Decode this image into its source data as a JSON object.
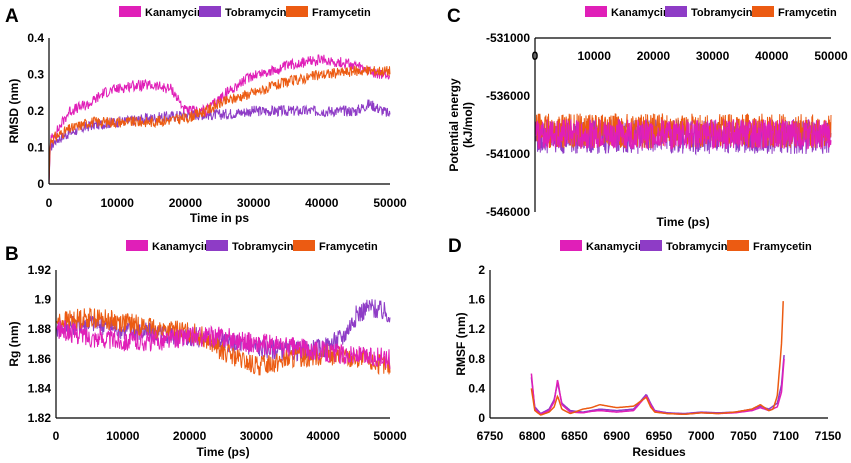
{
  "colors": {
    "Kanamycin": "#e01fb8",
    "Tobramycin": "#8e3cc6",
    "Framycetin": "#ec5b12"
  },
  "chart_data": [
    {
      "panel": "A",
      "type": "line",
      "xlabel": "Time in ps",
      "ylabel": "RMSD (nm)",
      "xlim": [
        0,
        50000
      ],
      "ylim": [
        0,
        0.4
      ],
      "xticks": [
        "0",
        "10000",
        "20000",
        "30000",
        "40000",
        "50000"
      ],
      "yticks": [
        "0",
        "0.1",
        "0.2",
        "0.3",
        "0.4"
      ],
      "legend": [
        "Kanamycin",
        "Tobramycin",
        "Framycetin"
      ],
      "series": [
        {
          "name": "Tobramycin",
          "noise": 0.015,
          "x": [
            0,
            200,
            1000,
            3000,
            6000,
            10000,
            15000,
            20000,
            25000,
            30000,
            35000,
            40000,
            45000,
            47000,
            50000
          ],
          "y": [
            0,
            0.1,
            0.12,
            0.14,
            0.16,
            0.17,
            0.18,
            0.19,
            0.19,
            0.2,
            0.2,
            0.2,
            0.2,
            0.22,
            0.19
          ]
        },
        {
          "name": "Kanamycin",
          "noise": 0.015,
          "x": [
            0,
            200,
            1000,
            3000,
            6000,
            8000,
            12000,
            15000,
            18000,
            20000,
            23000,
            26000,
            30000,
            33000,
            36000,
            40000,
            44000,
            48000,
            50000
          ],
          "y": [
            0,
            0.12,
            0.14,
            0.2,
            0.22,
            0.25,
            0.27,
            0.27,
            0.26,
            0.2,
            0.2,
            0.25,
            0.3,
            0.31,
            0.33,
            0.34,
            0.33,
            0.3,
            0.3
          ]
        },
        {
          "name": "Framycetin",
          "noise": 0.015,
          "x": [
            0,
            200,
            1000,
            3000,
            6000,
            10000,
            15000,
            20000,
            23000,
            25000,
            28000,
            30000,
            35000,
            40000,
            45000,
            50000
          ],
          "y": [
            0,
            0.12,
            0.13,
            0.15,
            0.17,
            0.17,
            0.17,
            0.18,
            0.2,
            0.22,
            0.24,
            0.25,
            0.28,
            0.3,
            0.31,
            0.31
          ]
        }
      ]
    },
    {
      "panel": "B",
      "type": "line",
      "xlabel": "Time (ps)",
      "ylabel": "Rg (nm)",
      "xlim": [
        0,
        50000
      ],
      "ylim": [
        1.82,
        1.92
      ],
      "xticks": [
        "0",
        "10000",
        "20000",
        "30000",
        "40000",
        "50000"
      ],
      "yticks": [
        "1.82",
        "1.84",
        "1.86",
        "1.88",
        "1.9",
        "1.92"
      ],
      "legend": [
        "Kanamycin",
        "Tobramycin",
        "Framycetin"
      ],
      "series": [
        {
          "name": "Tobramycin",
          "noise": 0.007,
          "x": [
            0,
            5000,
            10000,
            15000,
            20000,
            25000,
            30000,
            35000,
            40000,
            43000,
            45000,
            47000,
            50000
          ],
          "y": [
            1.88,
            1.885,
            1.88,
            1.877,
            1.875,
            1.872,
            1.868,
            1.865,
            1.867,
            1.875,
            1.89,
            1.895,
            1.89
          ]
        },
        {
          "name": "Framycetin",
          "noise": 0.007,
          "x": [
            0,
            5000,
            10000,
            15000,
            20000,
            22000,
            25000,
            28000,
            30000,
            35000,
            40000,
            45000,
            50000
          ],
          "y": [
            1.885,
            1.888,
            1.885,
            1.88,
            1.878,
            1.875,
            1.865,
            1.858,
            1.855,
            1.86,
            1.863,
            1.86,
            1.855
          ]
        },
        {
          "name": "Kanamycin",
          "noise": 0.007,
          "x": [
            0,
            5000,
            10000,
            15000,
            20000,
            25000,
            30000,
            35000,
            40000,
            45000,
            50000
          ],
          "y": [
            1.88,
            1.875,
            1.872,
            1.872,
            1.875,
            1.875,
            1.87,
            1.868,
            1.865,
            1.862,
            1.86
          ]
        }
      ]
    },
    {
      "panel": "C",
      "type": "line",
      "xlabel": "Time (ps)",
      "ylabel": "Potential energy (kJ/mol)",
      "xlim": [
        0,
        50000
      ],
      "ylim": [
        -546000,
        -531000
      ],
      "xticks": [
        "0",
        "10000",
        "20000",
        "30000",
        "40000",
        "50000"
      ],
      "yticks": [
        "-546000",
        "-541000",
        "-536000",
        "-531000"
      ],
      "legend": [
        "Kanamycin",
        "Tobramycin",
        "Framycetin"
      ],
      "series": [
        {
          "name": "Tobramycin",
          "noise": 1500,
          "x": [
            0,
            50000
          ],
          "y": [
            -539500,
            -539500
          ]
        },
        {
          "name": "Framycetin",
          "noise": 1500,
          "x": [
            0,
            50000
          ],
          "y": [
            -539000,
            -539000
          ]
        },
        {
          "name": "Kanamycin",
          "noise": 1300,
          "x": [
            0,
            50000
          ],
          "y": [
            -539300,
            -539300
          ]
        }
      ]
    },
    {
      "panel": "D",
      "type": "line",
      "xlabel": "Residues",
      "ylabel": "RMSF (nm)",
      "xlim": [
        6750,
        7150
      ],
      "ylim": [
        0,
        2
      ],
      "xticks": [
        "6750",
        "6800",
        "6850",
        "6900",
        "6950",
        "7000",
        "7050",
        "7100",
        "7150"
      ],
      "yticks": [
        "0",
        "0.4",
        "0.8",
        "1.2",
        "1.6",
        "2"
      ],
      "legend": [
        "Kanamycin",
        "Tobramycin",
        "Framycetin"
      ],
      "series": [
        {
          "name": "Tobramycin",
          "noise": 0,
          "x": [
            6799,
            6803,
            6810,
            6820,
            6826,
            6830,
            6835,
            6845,
            6860,
            6870,
            6880,
            6900,
            6920,
            6935,
            6940,
            6945,
            6960,
            6980,
            7000,
            7020,
            7040,
            7060,
            7070,
            7080,
            7090,
            7095,
            7098
          ],
          "y": [
            0.55,
            0.15,
            0.06,
            0.12,
            0.25,
            0.48,
            0.2,
            0.1,
            0.08,
            0.1,
            0.12,
            0.1,
            0.12,
            0.32,
            0.2,
            0.1,
            0.07,
            0.06,
            0.08,
            0.07,
            0.08,
            0.12,
            0.16,
            0.12,
            0.2,
            0.45,
            0.85
          ]
        },
        {
          "name": "Kanamycin",
          "noise": 0,
          "x": [
            6799,
            6803,
            6810,
            6820,
            6826,
            6830,
            6835,
            6845,
            6860,
            6870,
            6880,
            6900,
            6920,
            6935,
            6940,
            6945,
            6960,
            6980,
            7000,
            7020,
            7040,
            7060,
            7070,
            7080,
            7090,
            7095,
            7098
          ],
          "y": [
            0.6,
            0.12,
            0.05,
            0.1,
            0.22,
            0.52,
            0.18,
            0.08,
            0.07,
            0.09,
            0.1,
            0.08,
            0.1,
            0.3,
            0.18,
            0.09,
            0.06,
            0.05,
            0.07,
            0.06,
            0.07,
            0.1,
            0.14,
            0.1,
            0.15,
            0.35,
            0.8
          ]
        },
        {
          "name": "Framycetin",
          "noise": 0,
          "x": [
            6799,
            6803,
            6810,
            6820,
            6826,
            6830,
            6835,
            6845,
            6860,
            6870,
            6880,
            6900,
            6920,
            6935,
            6940,
            6945,
            6960,
            6980,
            7000,
            7020,
            7040,
            7060,
            7070,
            7080,
            7085,
            7090,
            7095,
            7097
          ],
          "y": [
            0.4,
            0.1,
            0.04,
            0.08,
            0.15,
            0.3,
            0.12,
            0.06,
            0.12,
            0.14,
            0.18,
            0.14,
            0.16,
            0.28,
            0.15,
            0.08,
            0.06,
            0.05,
            0.07,
            0.06,
            0.08,
            0.12,
            0.18,
            0.1,
            0.12,
            0.3,
            1.0,
            1.58
          ]
        }
      ]
    }
  ]
}
